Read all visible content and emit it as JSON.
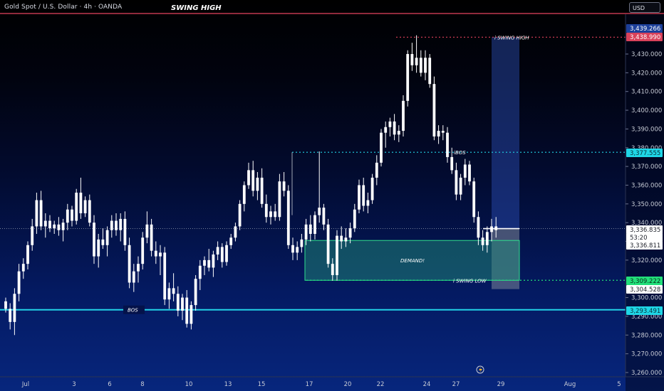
{
  "header": {
    "symbol": "Gold Spot / U.S. Dollar · 4h · OANDA",
    "title": "SWING HIGH",
    "currency_button": "USD"
  },
  "chart_data": {
    "type": "candlestick",
    "title": "SWING HIGH",
    "symbol": "Gold Spot / U.S. Dollar · 4h · OANDA",
    "timeframe": "4h",
    "y_range": [
      3258,
      3447
    ],
    "y_ticks": [
      "3,260.000",
      "3,270.000",
      "3,280.000",
      "3,290.000",
      "3,300.000",
      "3,320.000",
      "3,330.000",
      "3,340.000",
      "3,350.000",
      "3,360.000",
      "3,370.000",
      "3,380.000",
      "3,390.000",
      "3,400.000",
      "3,410.000",
      "3,420.000",
      "3,430.000"
    ],
    "x_ticks": [
      "Jul",
      "3",
      "6",
      "8",
      "10",
      "13",
      "15",
      "17",
      "20",
      "22",
      "24",
      "27",
      "29",
      "Aug",
      "5"
    ],
    "price_tags": [
      {
        "label": "3,439.266",
        "bg": "#1c3f9a",
        "fg": "#ffffff"
      },
      {
        "label": "3,438.990",
        "bg": "#d9415a",
        "fg": "#ffffff"
      },
      {
        "label": "3,377.555",
        "bg": "#1fd6e6",
        "fg": "#06303a"
      },
      {
        "label": "3,336.835",
        "bg": "#ffffff",
        "fg": "#1b1e27"
      },
      {
        "label": "53:20",
        "bg": "#ffffff",
        "fg": "#1b1e27"
      },
      {
        "label": "3,336.811",
        "bg": "#ffffff",
        "fg": "#1b1e27"
      },
      {
        "label": "3,309.222",
        "bg": "#22e07a",
        "fg": "#06301a"
      },
      {
        "label": "3,304.528",
        "bg": "#ffffff",
        "fg": "#1b1e27"
      },
      {
        "label": "3,293.491",
        "bg": "#1fd6e6",
        "fg": "#06303a"
      }
    ],
    "annotations": {
      "swing_high": "i SWING HIGH",
      "ibos": "iBOS",
      "demand": "DEMAND!",
      "swing_low": "i SWING LOW",
      "bos": "BOS"
    },
    "levels": {
      "swing_high": 3438.99,
      "ibos": 3377.555,
      "current": 3336.835,
      "swing_low": 3309.222,
      "bos": 3293.491
    },
    "demand_zone": {
      "top": 3330.5,
      "bottom": 3309.222
    },
    "target_box": {
      "top": 3438.99,
      "entry": 3336.835,
      "stop": 3304.528
    },
    "candles": [
      [
        3298,
        3300,
        3292,
        3294
      ],
      [
        3294,
        3297,
        3283,
        3287
      ],
      [
        3287,
        3305,
        3280,
        3302
      ],
      [
        3302,
        3318,
        3298,
        3314
      ],
      [
        3314,
        3321,
        3310,
        3318
      ],
      [
        3318,
        3330,
        3315,
        3328
      ],
      [
        3328,
        3342,
        3325,
        3338
      ],
      [
        3338,
        3356,
        3334,
        3352
      ],
      [
        3352,
        3357,
        3336,
        3338
      ],
      [
        3338,
        3345,
        3332,
        3341
      ],
      [
        3341,
        3344,
        3335,
        3337
      ],
      [
        3337,
        3341,
        3334,
        3339
      ],
      [
        3339,
        3343,
        3333,
        3336
      ],
      [
        3336,
        3342,
        3330,
        3340
      ],
      [
        3340,
        3350,
        3336,
        3347
      ],
      [
        3347,
        3349,
        3338,
        3341
      ],
      [
        3341,
        3358,
        3339,
        3356
      ],
      [
        3356,
        3364,
        3342,
        3345
      ],
      [
        3345,
        3354,
        3343,
        3352
      ],
      [
        3352,
        3355,
        3338,
        3340
      ],
      [
        3340,
        3344,
        3318,
        3322
      ],
      [
        3322,
        3334,
        3316,
        3331
      ],
      [
        3331,
        3337,
        3326,
        3328
      ],
      [
        3328,
        3338,
        3322,
        3336
      ],
      [
        3336,
        3344,
        3332,
        3341
      ],
      [
        3341,
        3345,
        3333,
        3336
      ],
      [
        3336,
        3345,
        3330,
        3342
      ],
      [
        3342,
        3346,
        3325,
        3328
      ],
      [
        3328,
        3332,
        3305,
        3308
      ],
      [
        3308,
        3318,
        3303,
        3314
      ],
      [
        3314,
        3322,
        3308,
        3318
      ],
      [
        3318,
        3335,
        3315,
        3332
      ],
      [
        3332,
        3346,
        3329,
        3339
      ],
      [
        3339,
        3342,
        3322,
        3325
      ],
      [
        3325,
        3330,
        3318,
        3322
      ],
      [
        3322,
        3328,
        3312,
        3324
      ],
      [
        3324,
        3327,
        3296,
        3299
      ],
      [
        3299,
        3308,
        3294,
        3305
      ],
      [
        3305,
        3313,
        3298,
        3302
      ],
      [
        3302,
        3306,
        3290,
        3293
      ],
      [
        3293,
        3302,
        3288,
        3300
      ],
      [
        3300,
        3304,
        3284,
        3286
      ],
      [
        3286,
        3298,
        3283,
        3296
      ],
      [
        3296,
        3312,
        3293,
        3310
      ],
      [
        3310,
        3320,
        3304,
        3317
      ],
      [
        3317,
        3322,
        3312,
        3320
      ],
      [
        3320,
        3326,
        3314,
        3316
      ],
      [
        3316,
        3325,
        3311,
        3323
      ],
      [
        3323,
        3330,
        3320,
        3327
      ],
      [
        3327,
        3329,
        3316,
        3319
      ],
      [
        3319,
        3330,
        3317,
        3328
      ],
      [
        3328,
        3334,
        3326,
        3332
      ],
      [
        3332,
        3340,
        3330,
        3338
      ],
      [
        3338,
        3352,
        3336,
        3350
      ],
      [
        3350,
        3362,
        3346,
        3360
      ],
      [
        3360,
        3372,
        3358,
        3368
      ],
      [
        3368,
        3373,
        3354,
        3357
      ],
      [
        3357,
        3367,
        3352,
        3364
      ],
      [
        3364,
        3369,
        3348,
        3350
      ],
      [
        3350,
        3355,
        3340,
        3343
      ],
      [
        3343,
        3349,
        3339,
        3346
      ],
      [
        3346,
        3350,
        3341,
        3343
      ],
      [
        3343,
        3366,
        3341,
        3362
      ],
      [
        3362,
        3367,
        3354,
        3357
      ],
      [
        3357,
        3360,
        3326,
        3328
      ],
      [
        3328,
        3332,
        3320,
        3324
      ],
      [
        3324,
        3330,
        3320,
        3327
      ],
      [
        3327,
        3334,
        3324,
        3331
      ],
      [
        3331,
        3342,
        3328,
        3339
      ],
      [
        3339,
        3344,
        3330,
        3334
      ],
      [
        3334,
        3346,
        3331,
        3344
      ],
      [
        3344,
        3378,
        3340,
        3348
      ],
      [
        3348,
        3350,
        3336,
        3339
      ],
      [
        3339,
        3342,
        3316,
        3318
      ],
      [
        3318,
        3321,
        3309,
        3312
      ],
      [
        3312,
        3336,
        3309,
        3333
      ],
      [
        3333,
        3338,
        3326,
        3330
      ],
      [
        3330,
        3337,
        3327,
        3332
      ],
      [
        3332,
        3340,
        3329,
        3337
      ],
      [
        3337,
        3350,
        3335,
        3347
      ],
      [
        3347,
        3363,
        3345,
        3360
      ],
      [
        3360,
        3364,
        3346,
        3349
      ],
      [
        3349,
        3356,
        3345,
        3352
      ],
      [
        3352,
        3366,
        3350,
        3364
      ],
      [
        3364,
        3376,
        3360,
        3372
      ],
      [
        3372,
        3390,
        3370,
        3388
      ],
      [
        3388,
        3394,
        3380,
        3391
      ],
      [
        3391,
        3396,
        3386,
        3394
      ],
      [
        3394,
        3398,
        3384,
        3387
      ],
      [
        3387,
        3392,
        3383,
        3389
      ],
      [
        3389,
        3408,
        3386,
        3405
      ],
      [
        3405,
        3432,
        3402,
        3430
      ],
      [
        3430,
        3436,
        3421,
        3424
      ],
      [
        3424,
        3440,
        3420,
        3428
      ],
      [
        3428,
        3432,
        3418,
        3420
      ],
      [
        3420,
        3432,
        3416,
        3428
      ],
      [
        3428,
        3430,
        3412,
        3414
      ],
      [
        3414,
        3418,
        3384,
        3386
      ],
      [
        3386,
        3392,
        3382,
        3389
      ],
      [
        3389,
        3392,
        3384,
        3388
      ],
      [
        3388,
        3391,
        3372,
        3375
      ],
      [
        3375,
        3380,
        3366,
        3368
      ],
      [
        3368,
        3372,
        3352,
        3355
      ],
      [
        3355,
        3366,
        3352,
        3364
      ],
      [
        3364,
        3374,
        3360,
        3371
      ],
      [
        3371,
        3373,
        3360,
        3362
      ],
      [
        3362,
        3364,
        3340,
        3343
      ],
      [
        3343,
        3346,
        3328,
        3332
      ],
      [
        3332,
        3336,
        3325,
        3328
      ],
      [
        3328,
        3338,
        3324,
        3335
      ],
      [
        3335,
        3342,
        3330,
        3338
      ],
      [
        3338,
        3343,
        3332,
        3336
      ]
    ]
  }
}
